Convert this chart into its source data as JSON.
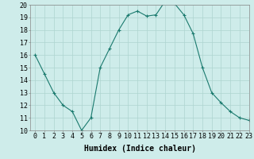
{
  "x": [
    0,
    1,
    2,
    3,
    4,
    5,
    6,
    7,
    8,
    9,
    10,
    11,
    12,
    13,
    14,
    15,
    16,
    17,
    18,
    19,
    20,
    21,
    22,
    23
  ],
  "y": [
    16,
    14.5,
    13,
    12,
    11.5,
    10,
    11,
    15,
    16.5,
    18,
    19.2,
    19.5,
    19.1,
    19.2,
    20.3,
    20.1,
    19.2,
    17.7,
    15,
    13,
    12.2,
    11.5,
    11,
    10.8
  ],
  "line_color": "#1a7a6e",
  "marker": "+",
  "marker_size": 3,
  "marker_lw": 0.8,
  "bg_color": "#ceecea",
  "grid_color": "#aed4d0",
  "xlabel": "Humidex (Indice chaleur)",
  "ylim": [
    10,
    20
  ],
  "xlim": [
    -0.5,
    23
  ],
  "yticks": [
    10,
    11,
    12,
    13,
    14,
    15,
    16,
    17,
    18,
    19,
    20
  ],
  "xticks": [
    0,
    1,
    2,
    3,
    4,
    5,
    6,
    7,
    8,
    9,
    10,
    11,
    12,
    13,
    14,
    15,
    16,
    17,
    18,
    19,
    20,
    21,
    22,
    23
  ],
  "xlabel_fontsize": 7,
  "tick_fontsize": 6,
  "line_width": 0.8,
  "spine_color": "#888888"
}
